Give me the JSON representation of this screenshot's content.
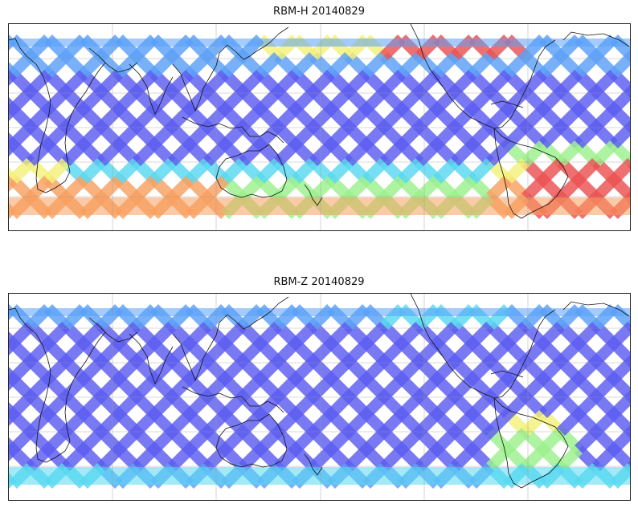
{
  "figure": {
    "panels": [
      {
        "id": "top",
        "title": "RBM-H 20140829"
      },
      {
        "id": "bottom",
        "title": "RBM-Z 20140829"
      }
    ]
  },
  "map": {
    "projection": "equirectangular",
    "center_longitude": 180,
    "coastlines": true,
    "gridlines": true,
    "colormap": "jet (semi-transparent)",
    "swath_pattern": "criss-cross satellite tracks",
    "high_value_regions": {
      "top": [
        "South Atlantic / South America",
        "Southern Ocean band",
        "North Pacific near Alaska"
      ],
      "bottom": [
        "South Atlantic / South America (weaker)"
      ]
    },
    "colors": {
      "low": "#5a5cf0",
      "low_mid": "#5aa0f8",
      "mid": "#58d8f0",
      "mid_high": "#9cf08c",
      "high": "#f4f07a",
      "very_high": "#f8a060",
      "max": "#ec5050"
    }
  }
}
